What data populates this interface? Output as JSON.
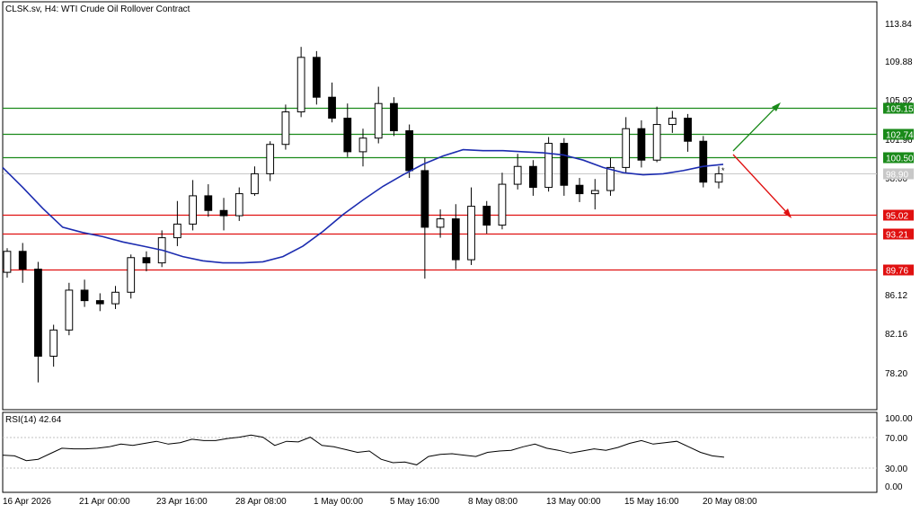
{
  "header": {
    "title": "CLSK.sv, H4:  WTI Crude Oil Rollover Contract"
  },
  "rsi": {
    "label": "RSI(14) 42.64",
    "levels": [
      "100.00",
      "70.00",
      "30.00",
      "0.00"
    ]
  },
  "price_axis": {
    "ticks": [
      "113.84",
      "109.88",
      "105.92",
      "101.96",
      "98.00",
      "94.04",
      "86.12",
      "82.16",
      "78.20"
    ]
  },
  "price_levels": [
    {
      "label": "105.15",
      "kind": "resistance",
      "color": "#1a8a1a"
    },
    {
      "label": "102.74",
      "kind": "resistance",
      "color": "#1a8a1a"
    },
    {
      "label": "100.50",
      "kind": "resistance",
      "color": "#1a8a1a"
    },
    {
      "label": "98.90",
      "kind": "current",
      "color": "#c8c8c8"
    },
    {
      "label": "95.02",
      "kind": "support",
      "color": "#e01010"
    },
    {
      "label": "93.21",
      "kind": "support",
      "color": "#e01010"
    },
    {
      "label": "89.76",
      "kind": "support",
      "color": "#e01010"
    }
  ],
  "time_axis": {
    "labels": [
      "16 Apr 2026",
      "21 Apr 00:00",
      "23 Apr 16:00",
      "28 Apr 08:00",
      "1 May 00:00",
      "5 May 16:00",
      "8 May 08:00",
      "13 May 00:00",
      "15 May 16:00",
      "20 May 08:00"
    ]
  },
  "colors": {
    "ma_line": "#1c2cb0",
    "rsi_line": "#000000",
    "bull_arrow": "#1a8a1a",
    "bear_arrow": "#e01010"
  },
  "chart_data": {
    "type": "candlestick",
    "title": "CLSK.sv, H4:  WTI Crude Oil Rollover Contract",
    "ylim": [
      76.4,
      115.3
    ],
    "ohlc_sampled": [
      [
        89.5,
        91.8,
        89.0,
        91.5
      ],
      [
        91.5,
        92.3,
        88.5,
        89.8
      ],
      [
        89.8,
        90.5,
        79.0,
        81.5
      ],
      [
        81.5,
        84.5,
        80.5,
        84.0
      ],
      [
        84.0,
        88.5,
        83.5,
        87.8
      ],
      [
        87.8,
        88.8,
        86.2,
        86.8
      ],
      [
        86.8,
        87.5,
        85.8,
        86.5
      ],
      [
        86.5,
        88.2,
        86.0,
        87.6
      ],
      [
        87.6,
        91.2,
        87.0,
        90.9
      ],
      [
        90.9,
        91.5,
        89.6,
        90.4
      ],
      [
        90.4,
        93.5,
        90.0,
        92.8
      ],
      [
        92.8,
        96.3,
        92.0,
        94.1
      ],
      [
        94.1,
        98.3,
        93.5,
        96.8
      ],
      [
        96.8,
        97.9,
        94.8,
        95.4
      ],
      [
        95.4,
        96.6,
        93.5,
        94.9
      ],
      [
        94.9,
        97.6,
        94.4,
        97.0
      ],
      [
        97.0,
        99.6,
        96.8,
        98.9
      ],
      [
        98.9,
        102.0,
        98.2,
        101.7
      ],
      [
        101.7,
        105.5,
        101.2,
        104.8
      ],
      [
        104.8,
        111.0,
        104.3,
        110.0
      ],
      [
        110.0,
        110.6,
        105.5,
        106.2
      ],
      [
        106.2,
        107.6,
        103.8,
        104.2
      ],
      [
        104.2,
        105.6,
        100.5,
        101.0
      ],
      [
        101.0,
        103.2,
        99.6,
        102.3
      ],
      [
        102.3,
        107.2,
        101.8,
        105.6
      ],
      [
        105.6,
        106.2,
        102.5,
        103.0
      ],
      [
        103.0,
        103.6,
        98.5,
        99.2
      ],
      [
        99.2,
        100.4,
        88.9,
        93.8
      ],
      [
        93.8,
        95.5,
        92.8,
        94.6
      ],
      [
        94.6,
        96.0,
        89.8,
        90.7
      ],
      [
        90.7,
        97.6,
        90.2,
        95.8
      ],
      [
        95.8,
        96.3,
        93.2,
        94.0
      ],
      [
        94.0,
        99.0,
        93.6,
        97.9
      ],
      [
        97.9,
        100.8,
        97.4,
        99.6
      ],
      [
        99.6,
        100.2,
        96.8,
        97.6
      ],
      [
        97.6,
        102.4,
        97.2,
        101.8
      ],
      [
        101.8,
        102.3,
        96.8,
        97.8
      ],
      [
        97.8,
        98.5,
        96.2,
        97.0
      ],
      [
        97.0,
        98.4,
        95.5,
        97.3
      ],
      [
        97.3,
        100.4,
        96.8,
        99.5
      ],
      [
        99.5,
        104.3,
        99.0,
        103.2
      ],
      [
        103.2,
        104.0,
        99.5,
        100.2
      ],
      [
        100.2,
        105.3,
        100.0,
        103.6
      ],
      [
        103.6,
        104.9,
        102.8,
        104.2
      ],
      [
        104.2,
        104.6,
        101.0,
        102.0
      ],
      [
        102.0,
        102.5,
        97.6,
        98.1
      ],
      [
        98.1,
        99.6,
        97.5,
        98.9
      ]
    ],
    "moving_average": [
      99.5,
      97.6,
      95.6,
      93.8,
      93.3,
      92.9,
      92.4,
      92.0,
      91.6,
      91.0,
      90.6,
      90.4,
      90.4,
      90.5,
      91.0,
      92.0,
      93.4,
      95.0,
      96.4,
      97.7,
      98.8,
      99.8,
      100.6,
      101.2,
      101.1,
      101.1,
      101.0,
      100.9,
      100.7,
      100.2,
      99.5,
      99.0,
      98.8,
      98.9,
      99.2,
      99.6,
      99.8
    ],
    "rsi_values": [
      46,
      45,
      38,
      40,
      48,
      56,
      55,
      55,
      56,
      58,
      62,
      60,
      63,
      66,
      62,
      64,
      69,
      67,
      67,
      70,
      72,
      75,
      72,
      60,
      66,
      65,
      72,
      60,
      58,
      54,
      50,
      52,
      40,
      35,
      36,
      32,
      44,
      47,
      48,
      46,
      44,
      50,
      52,
      53,
      58,
      62,
      56,
      53,
      49,
      52,
      55,
      53,
      57,
      63,
      67,
      62,
      64,
      66,
      58,
      50,
      45,
      43
    ],
    "rsi_ylim": [
      0,
      100
    ],
    "rsi_levels": [
      70,
      30
    ]
  }
}
